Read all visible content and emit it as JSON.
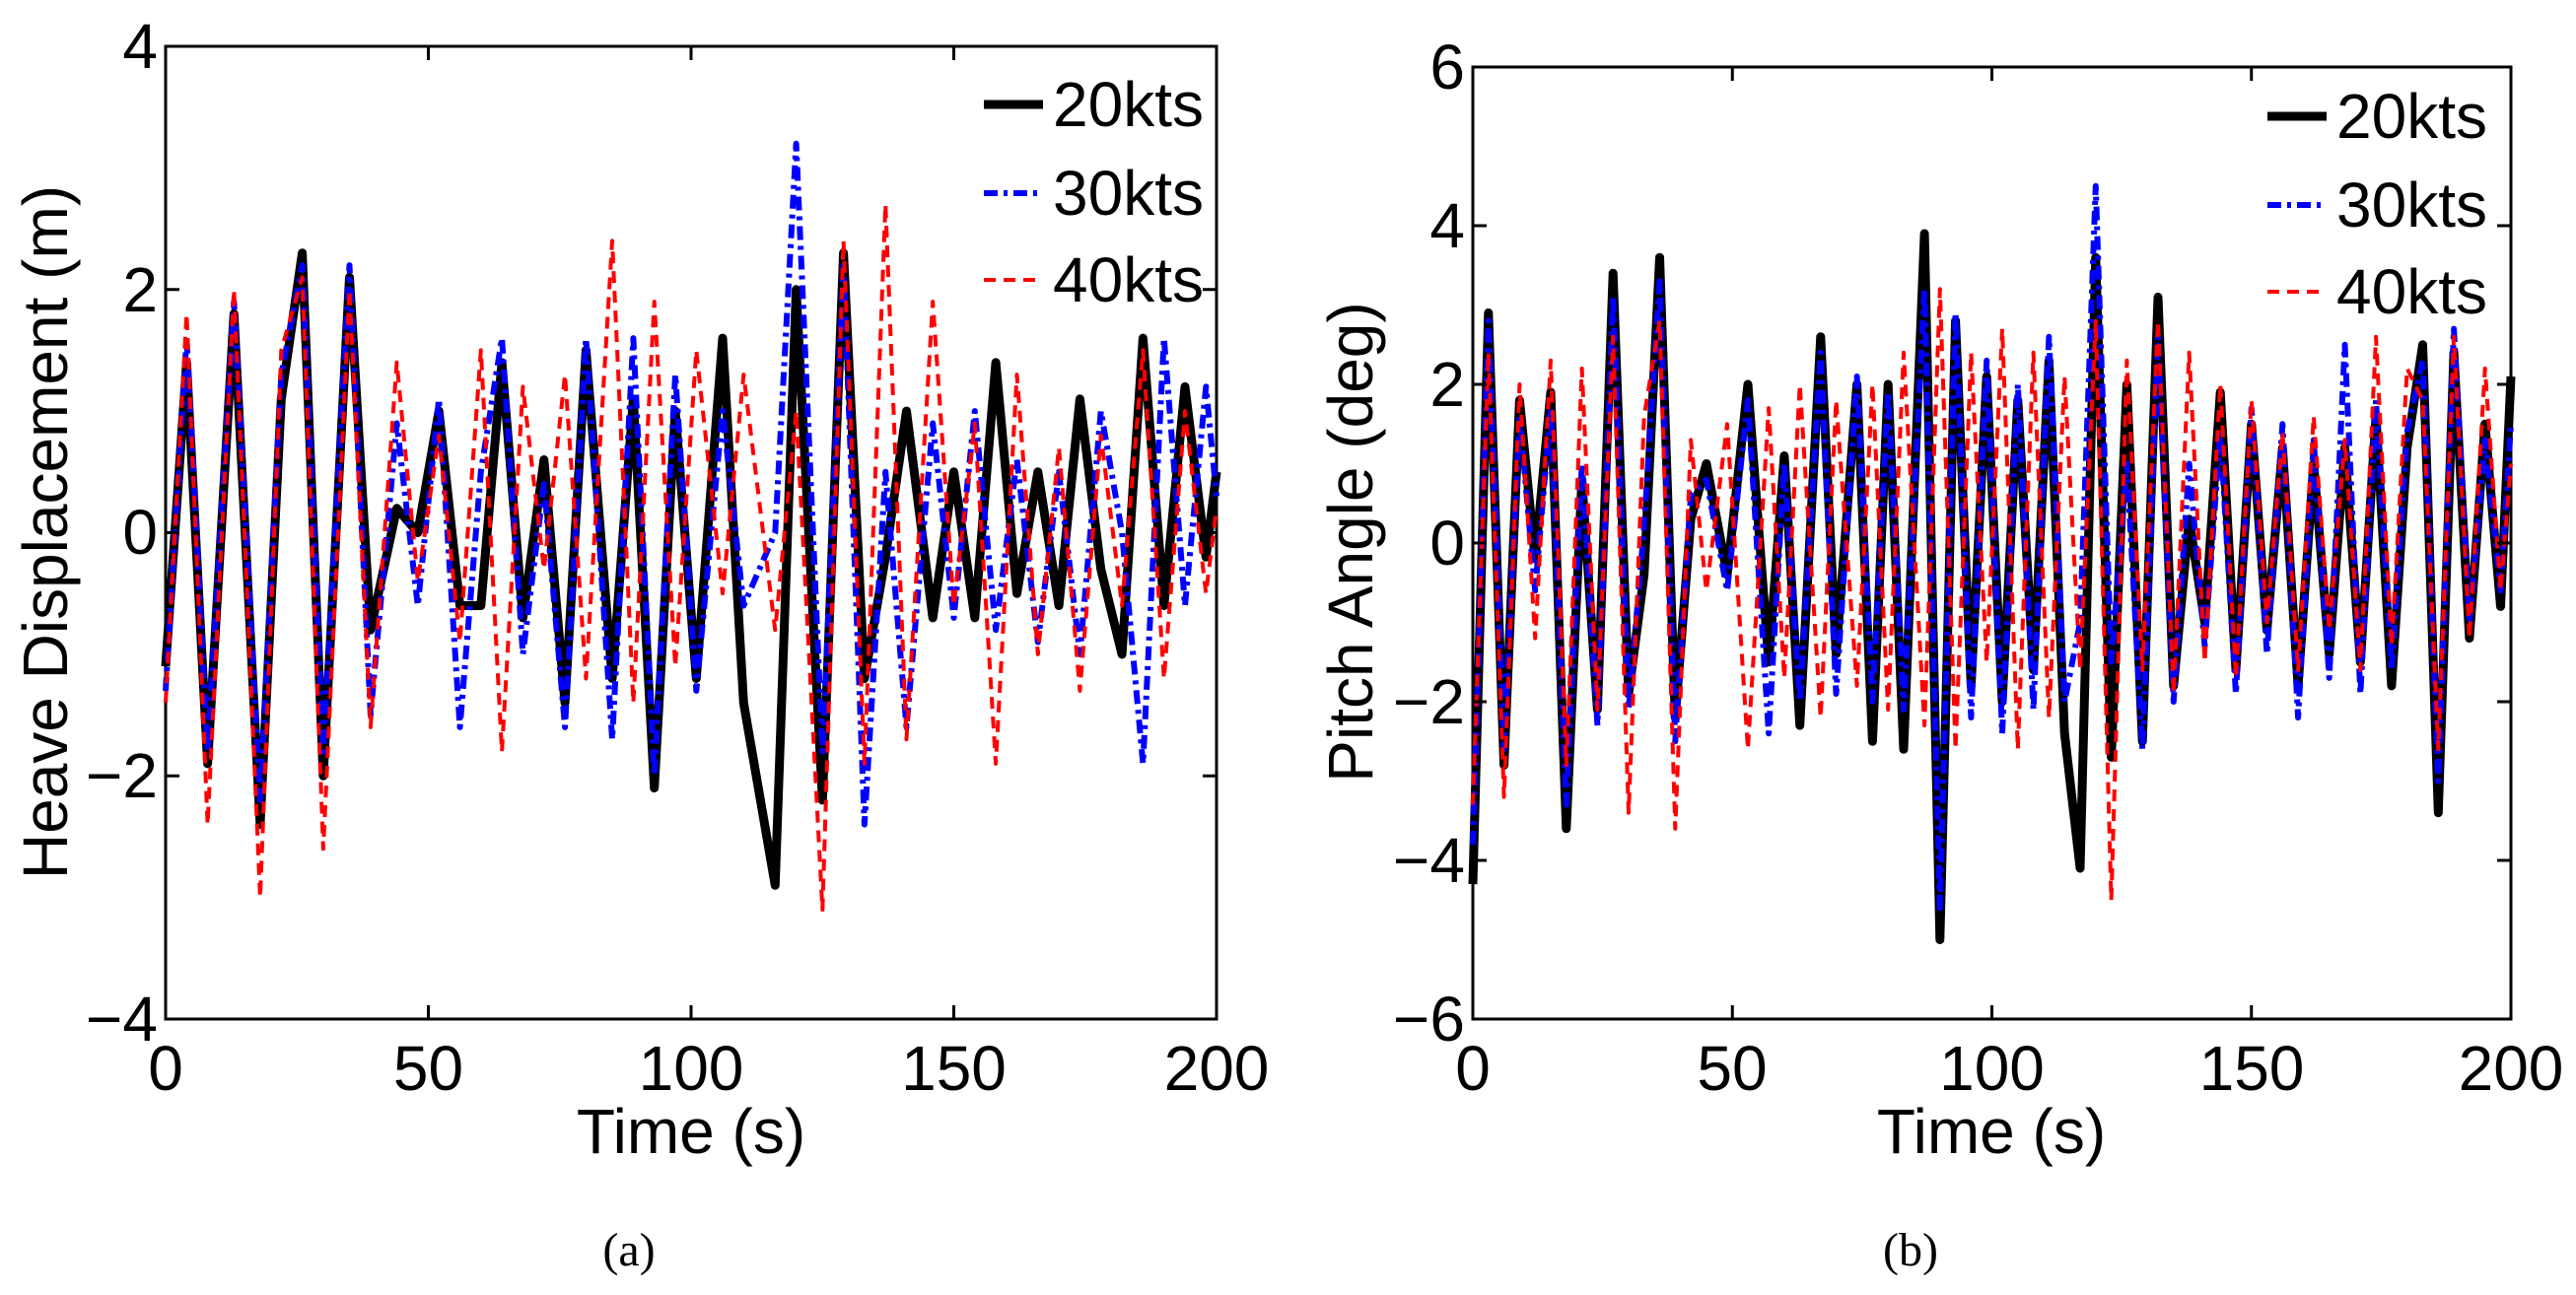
{
  "chart_data": [
    {
      "type": "line",
      "panel_caption": "(a)",
      "xlabel": "Time (s)",
      "ylabel": "Heave Displacement (m)",
      "xlim": [
        0,
        200
      ],
      "ylim": [
        -4,
        4
      ],
      "xticks": [
        0,
        50,
        100,
        150,
        200
      ],
      "yticks": [
        -4,
        -2,
        0,
        2,
        4
      ],
      "xtick_labels": [
        "0",
        "50",
        "100",
        "150",
        "200"
      ],
      "ytick_labels": [
        "−4",
        "−2",
        "0",
        "2",
        "4"
      ],
      "legend_position": "top-right",
      "series": [
        {
          "name": "20kts",
          "color": "#000000",
          "style": "solid",
          "x": [
            0,
            4,
            8,
            13,
            18,
            22,
            26,
            30,
            35,
            39,
            44,
            48,
            52,
            56,
            60,
            64,
            68,
            72,
            76,
            80,
            85,
            89,
            93,
            97,
            101,
            106,
            110,
            116,
            120,
            125,
            129,
            133,
            137,
            141,
            146,
            150,
            154,
            158,
            162,
            166,
            170,
            174,
            178,
            182,
            186,
            190,
            194,
            198,
            200
          ],
          "y": [
            -1.1,
            1.4,
            -1.9,
            1.8,
            -2.4,
            1.1,
            2.3,
            -2.0,
            2.1,
            -0.8,
            0.2,
            0.0,
            1.0,
            -0.6,
            -0.6,
            1.4,
            -0.7,
            0.6,
            -1.4,
            1.5,
            -1.2,
            1.1,
            -2.1,
            1.0,
            -1.2,
            1.6,
            -1.4,
            -2.9,
            2.0,
            -2.2,
            2.3,
            -1.2,
            -0.2,
            1.0,
            -0.7,
            0.5,
            -0.7,
            1.4,
            -0.5,
            0.5,
            -0.6,
            1.1,
            -0.3,
            -1.0,
            1.6,
            -0.6,
            1.2,
            -0.2,
            0.5
          ]
        },
        {
          "name": "30kts",
          "color": "#0000ff",
          "style": "dashdot",
          "x": [
            0,
            4,
            8,
            13,
            18,
            22,
            26,
            30,
            35,
            39,
            44,
            48,
            52,
            56,
            60,
            64,
            68,
            72,
            76,
            80,
            85,
            89,
            93,
            97,
            101,
            106,
            110,
            116,
            120,
            125,
            129,
            133,
            137,
            141,
            146,
            150,
            154,
            158,
            162,
            166,
            170,
            174,
            178,
            182,
            186,
            190,
            194,
            198,
            200
          ],
          "y": [
            -1.3,
            1.6,
            -1.8,
            1.9,
            -2.2,
            1.3,
            2.2,
            -1.8,
            2.2,
            -1.5,
            0.9,
            -0.6,
            1.1,
            -1.6,
            0.5,
            1.6,
            -1.0,
            0.4,
            -1.6,
            1.6,
            -1.7,
            1.6,
            -2.0,
            1.3,
            -1.3,
            1.0,
            -0.6,
            0.0,
            3.2,
            -1.8,
            2.2,
            -2.4,
            0.5,
            -1.6,
            0.9,
            -0.7,
            1.0,
            -0.8,
            0.6,
            -0.9,
            0.5,
            -1.0,
            1.0,
            0.0,
            -1.9,
            1.6,
            -0.6,
            1.2,
            0.3
          ]
        },
        {
          "name": "40kts",
          "color": "#ff0000",
          "style": "dashed",
          "x": [
            0,
            4,
            8,
            13,
            18,
            22,
            26,
            30,
            35,
            39,
            44,
            48,
            52,
            56,
            60,
            64,
            68,
            72,
            76,
            80,
            85,
            89,
            93,
            97,
            101,
            106,
            110,
            116,
            120,
            125,
            129,
            133,
            137,
            141,
            146,
            150,
            154,
            158,
            162,
            166,
            170,
            174,
            178,
            182,
            186,
            190,
            194,
            198,
            200
          ],
          "y": [
            -1.4,
            1.8,
            -2.4,
            2.0,
            -3.0,
            1.5,
            2.1,
            -2.6,
            2.0,
            -1.6,
            1.4,
            -0.4,
            0.8,
            -0.9,
            1.5,
            -1.8,
            1.2,
            -0.3,
            1.3,
            -1.2,
            2.4,
            -1.4,
            1.9,
            -1.1,
            1.5,
            -0.5,
            1.3,
            -0.8,
            1.0,
            -3.1,
            2.4,
            -1.9,
            2.7,
            -1.7,
            1.9,
            -0.6,
            0.9,
            -1.9,
            1.3,
            -1.0,
            0.7,
            -1.3,
            0.8,
            -0.6,
            1.5,
            -1.2,
            1.0,
            -0.5,
            0.2
          ]
        }
      ]
    },
    {
      "type": "line",
      "panel_caption": "(b)",
      "xlabel": "Time (s)",
      "ylabel": "Pitch Angle (deg)",
      "xlim": [
        0,
        200
      ],
      "ylim": [
        -6,
        6
      ],
      "xticks": [
        0,
        50,
        100,
        150,
        200
      ],
      "yticks": [
        -6,
        -4,
        -2,
        0,
        2,
        4,
        6
      ],
      "xtick_labels": [
        "0",
        "50",
        "100",
        "150",
        "200"
      ],
      "ytick_labels": [
        "−6",
        "−4",
        "−2",
        "0",
        "2",
        "4",
        "6"
      ],
      "legend_position": "top-right",
      "series": [
        {
          "name": "20kts",
          "color": "#000000",
          "style": "solid",
          "x": [
            0,
            3,
            6,
            9,
            12,
            15,
            18,
            21,
            24,
            27,
            30,
            33,
            36,
            39,
            42,
            45,
            49,
            53,
            57,
            60,
            63,
            67,
            70,
            74,
            77,
            80,
            83,
            87,
            90,
            93,
            96,
            99,
            102,
            105,
            108,
            111,
            114,
            117,
            120,
            123,
            126,
            129,
            132,
            135,
            138,
            141,
            144,
            147,
            150,
            153,
            156,
            159,
            162,
            165,
            168,
            171,
            174,
            177,
            180,
            183,
            186,
            189,
            192,
            195,
            198,
            200
          ],
          "y": [
            -4.3,
            2.9,
            -2.8,
            1.8,
            -0.2,
            1.9,
            -3.6,
            0.8,
            -2.1,
            3.4,
            -1.9,
            -0.4,
            3.6,
            -2.2,
            0.3,
            1.0,
            -0.4,
            2.0,
            -1.5,
            1.1,
            -2.3,
            2.6,
            -1.4,
            2.0,
            -2.5,
            2.0,
            -2.6,
            3.9,
            -5.0,
            2.8,
            -1.8,
            2.1,
            -2.0,
            1.8,
            -1.6,
            2.3,
            -2.4,
            -4.1,
            3.6,
            -2.7,
            2.0,
            -2.5,
            3.1,
            -1.8,
            0.3,
            -1.0,
            1.9,
            -1.6,
            1.5,
            -1.1,
            1.2,
            -1.8,
            1.0,
            -1.4,
            1.2,
            -1.5,
            1.6,
            -1.8,
            1.2,
            2.5,
            -3.4,
            2.4,
            -1.2,
            1.5,
            -0.8,
            2.1
          ]
        },
        {
          "name": "30kts",
          "color": "#0000ff",
          "style": "dashdot",
          "x": [
            0,
            3,
            6,
            9,
            12,
            15,
            18,
            21,
            24,
            27,
            30,
            33,
            36,
            39,
            42,
            45,
            49,
            53,
            57,
            60,
            63,
            67,
            70,
            74,
            77,
            80,
            83,
            87,
            90,
            93,
            96,
            99,
            102,
            105,
            108,
            111,
            114,
            117,
            120,
            123,
            126,
            129,
            132,
            135,
            138,
            141,
            144,
            147,
            150,
            153,
            156,
            159,
            162,
            165,
            168,
            171,
            174,
            177,
            180,
            183,
            186,
            189,
            192,
            195,
            198,
            200
          ],
          "y": [
            -3.8,
            2.8,
            -2.6,
            1.6,
            -0.6,
            1.7,
            -3.3,
            1.0,
            -2.3,
            3.1,
            -2.1,
            0.2,
            3.3,
            -2.5,
            0.6,
            0.8,
            -0.6,
            1.8,
            -2.4,
            1.0,
            -2.0,
            2.4,
            -1.9,
            2.1,
            -2.0,
            1.9,
            -2.1,
            3.2,
            -4.6,
            2.9,
            -2.2,
            2.3,
            -2.4,
            2.0,
            -2.1,
            2.6,
            -2.0,
            -1.0,
            4.5,
            -1.5,
            1.0,
            -2.6,
            2.6,
            -2.0,
            1.0,
            -1.3,
            1.4,
            -1.9,
            1.7,
            -1.4,
            1.5,
            -2.2,
            1.3,
            -1.7,
            2.5,
            -1.9,
            1.8,
            -1.6,
            1.4,
            2.3,
            -3.0,
            2.7,
            -1.0,
            1.3,
            -0.6,
            1.5
          ]
        },
        {
          "name": "40kts",
          "color": "#ff0000",
          "style": "dashed",
          "x": [
            0,
            3,
            6,
            9,
            12,
            15,
            18,
            21,
            24,
            27,
            30,
            33,
            36,
            39,
            42,
            45,
            49,
            53,
            57,
            60,
            63,
            67,
            70,
            74,
            77,
            80,
            83,
            87,
            90,
            93,
            96,
            99,
            102,
            105,
            108,
            111,
            114,
            117,
            120,
            123,
            126,
            129,
            132,
            135,
            138,
            141,
            144,
            147,
            150,
            153,
            156,
            159,
            162,
            165,
            168,
            171,
            174,
            177,
            180,
            183,
            186,
            189,
            192,
            195,
            198,
            200
          ],
          "y": [
            -3.3,
            2.4,
            -3.2,
            2.0,
            -1.2,
            2.3,
            -2.8,
            2.2,
            -2.1,
            2.6,
            -3.4,
            1.6,
            2.8,
            -3.6,
            1.3,
            -0.6,
            1.5,
            -2.6,
            1.7,
            -1.7,
            2.0,
            -2.2,
            1.8,
            -1.8,
            2.0,
            -2.1,
            2.4,
            -2.3,
            3.2,
            -2.6,
            2.4,
            -1.5,
            2.7,
            -2.6,
            2.4,
            -2.2,
            2.1,
            -1.6,
            2.8,
            -4.5,
            2.3,
            -1.6,
            2.8,
            -1.9,
            2.4,
            -1.5,
            2.0,
            -1.7,
            1.8,
            -1.0,
            1.4,
            -1.6,
            1.6,
            -1.1,
            1.3,
            -1.6,
            2.6,
            -1.3,
            2.2,
            1.8,
            -2.6,
            2.6,
            -1.2,
            2.2,
            -0.6,
            1.0
          ]
        }
      ]
    }
  ]
}
